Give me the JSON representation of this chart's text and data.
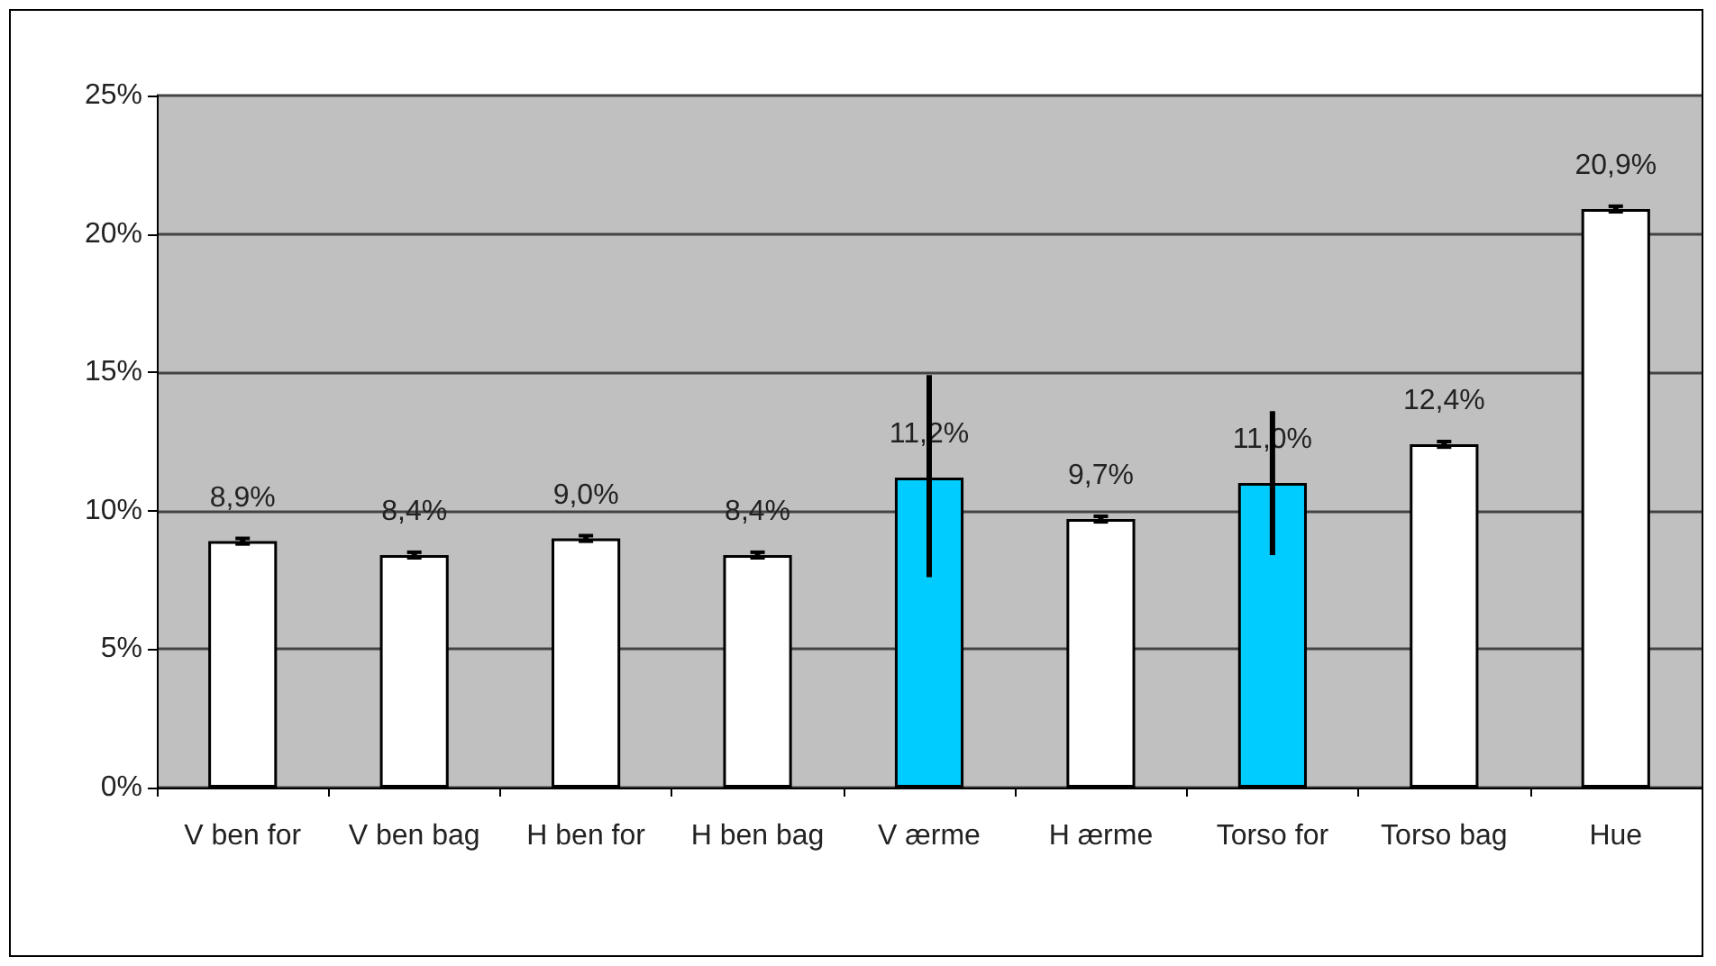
{
  "chart_data": {
    "type": "bar",
    "categories": [
      "V ben for",
      "V ben bag",
      "H ben for",
      "H ben bag",
      "V ærme",
      "H ærme",
      "Torso for",
      "Torso bag",
      "Hue"
    ],
    "values": [
      8.9,
      8.4,
      9.0,
      8.4,
      11.2,
      9.7,
      11.0,
      12.4,
      20.9
    ],
    "colors": [
      "#ffffff",
      "#ffffff",
      "#ffffff",
      "#ffffff",
      "#00ccff",
      "#ffffff",
      "#00ccff",
      "#ffffff",
      "#ffffff"
    ],
    "errors": [
      0.1,
      0.1,
      0.1,
      0.1,
      [
        7.6,
        14.9
      ],
      0.1,
      [
        8.4,
        13.6
      ],
      0.1,
      0.1
    ],
    "value_labels": [
      "8,9%",
      "8,4%",
      "9,0%",
      "8,4%",
      "11,2%",
      "9,7%",
      "11,0%",
      "12,4%",
      "20,9%"
    ],
    "ylim": [
      0,
      25
    ],
    "yticks": [
      {
        "value": 0,
        "label": "0%"
      },
      {
        "value": 5,
        "label": "5%"
      },
      {
        "value": 10,
        "label": "10%"
      },
      {
        "value": 15,
        "label": "15%"
      },
      {
        "value": 20,
        "label": "20%"
      },
      {
        "value": 25,
        "label": "25%"
      }
    ],
    "grid": "y"
  }
}
